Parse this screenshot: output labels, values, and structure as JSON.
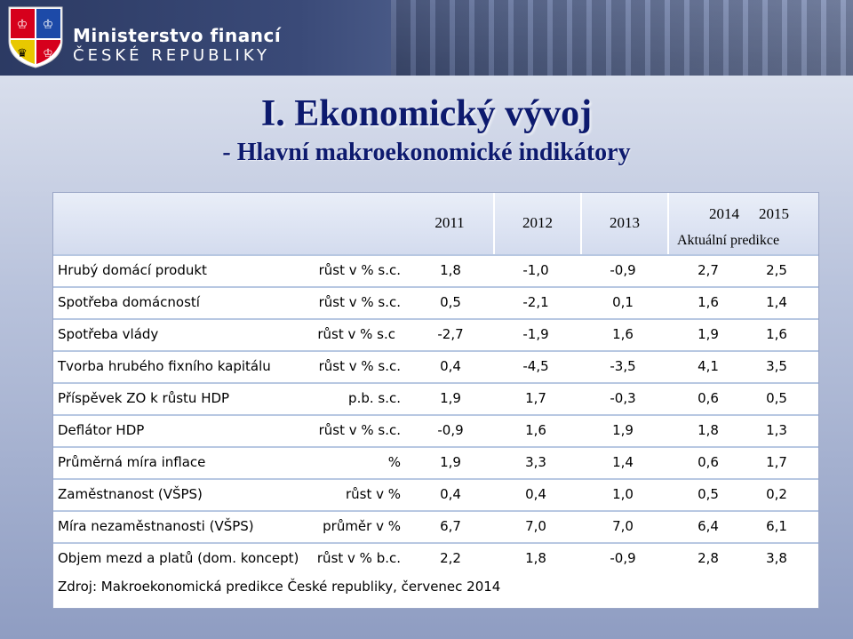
{
  "header": {
    "ministry_name": "Ministerstvo financí",
    "ministry_sub": "ČESKÉ REPUBLIKY"
  },
  "title": "I. Ekonomický vývoj",
  "subtitle": "- Hlavní makroekonomické indikátory",
  "table": {
    "years": [
      "2011",
      "2012",
      "2013",
      "2014",
      "2015"
    ],
    "forecast_label": "Aktuální predikce",
    "rows": [
      {
        "name": "Hrubý domácí produkt",
        "unit": "růst v % s.c.",
        "values": [
          "1,8",
          "-1,0",
          "-0,9",
          "2,7",
          "2,5"
        ]
      },
      {
        "name": "Spotřeba domácností",
        "unit": "růst v % s.c.",
        "values": [
          "0,5",
          "-2,1",
          "0,1",
          "1,6",
          "1,4"
        ]
      },
      {
        "name": "Spotřeba vlády",
        "unit": "růst v % s.c",
        "values": [
          "-2,7",
          "-1,9",
          "1,6",
          "1,9",
          "1,6"
        ]
      },
      {
        "name": "Tvorba hrubého fixního kapitálu",
        "unit": "růst v % s.c.",
        "values": [
          "0,4",
          "-4,5",
          "-3,5",
          "4,1",
          "3,5"
        ]
      },
      {
        "name": "Příspěvek ZO k růstu HDP",
        "unit": "p.b. s.c.",
        "values": [
          "1,9",
          "1,7",
          "-0,3",
          "0,6",
          "0,5"
        ]
      },
      {
        "name": "Deflátor HDP",
        "unit": "růst v % s.c.",
        "values": [
          "-0,9",
          "1,6",
          "1,9",
          "1,8",
          "1,3"
        ]
      },
      {
        "name": "Průměrná míra inflace",
        "unit": "%",
        "values": [
          "1,9",
          "3,3",
          "1,4",
          "0,6",
          "1,7"
        ]
      },
      {
        "name": "Zaměstnanost (VŠPS)",
        "unit": "růst v %",
        "values": [
          "0,4",
          "0,4",
          "1,0",
          "0,5",
          "0,2"
        ]
      },
      {
        "name": "Míra nezaměstnanosti (VŠPS)",
        "unit": "průměr v %",
        "values": [
          "6,7",
          "7,0",
          "7,0",
          "6,4",
          "6,1"
        ]
      },
      {
        "name": "Objem mezd a platů (dom. koncept)",
        "unit": "růst v % b.c.",
        "values": [
          "2,2",
          "1,8",
          "-0,9",
          "2,8",
          "3,8"
        ]
      }
    ],
    "source": "Zdroj: Makroekonomická predikce České republiky, červenec 2014"
  }
}
